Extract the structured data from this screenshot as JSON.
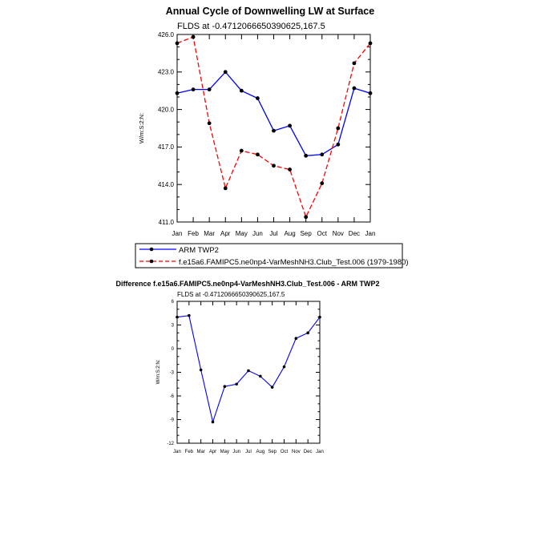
{
  "chart_data": [
    {
      "type": "line",
      "title": "Annual Cycle of Downwelling LW at Surface",
      "subtitle": "FLDS at -0.4712066650390625,167.5",
      "ylabel": "W/m:S:2:N:",
      "categories": [
        "Jan",
        "Feb",
        "Mar",
        "Apr",
        "May",
        "Jun",
        "Jul",
        "Aug",
        "Sep",
        "Oct",
        "Nov",
        "Dec",
        "Jan"
      ],
      "yticks": [
        "426.0",
        "423.0",
        "420.0",
        "417.0",
        "414.0",
        "411.0"
      ],
      "ylim": [
        411,
        426
      ],
      "grid": false,
      "legend_placement": "bottom",
      "series": [
        {
          "name": "ARM TWP2",
          "color": "#0000ff",
          "dash": "solid",
          "values": [
            421.3,
            421.6,
            421.6,
            423.0,
            421.5,
            420.9,
            418.3,
            418.7,
            416.3,
            416.4,
            417.2,
            421.7,
            421.3
          ]
        },
        {
          "name": "f.e15a6.FAMIPC5.ne0np4-VarMeshNH3.Club_Test.006 (1979-1980)",
          "color": "#ff0000",
          "dash": "dashed",
          "values": [
            425.3,
            425.8,
            418.9,
            413.7,
            416.7,
            416.4,
            415.5,
            415.2,
            411.4,
            414.1,
            418.5,
            423.7,
            425.3
          ]
        }
      ]
    },
    {
      "type": "line",
      "title": "Difference f.e15a6.FAMIPC5.ne0np4-VarMeshNH3.Club_Test.006 - ARM TWP2",
      "subtitle": "FLDS at -0.4712066650390625,167.5",
      "ylabel": "W/m:S:2:N:",
      "categories": [
        "Jan",
        "Feb",
        "Mar",
        "Apr",
        "May",
        "Jun",
        "Jul",
        "Aug",
        "Sep",
        "Oct",
        "Nov",
        "Dec",
        "Jan"
      ],
      "yticks": [
        "6",
        "3",
        "0",
        "-3",
        "-6",
        "-9",
        "-12"
      ],
      "ylim": [
        -12,
        6
      ],
      "grid": false,
      "series": [
        {
          "color": "#0000ff",
          "dash": "solid",
          "values": [
            4.0,
            4.2,
            -2.7,
            -9.3,
            -4.8,
            -4.5,
            -2.8,
            -3.5,
            -4.9,
            -2.3,
            1.3,
            2.0,
            4.0
          ]
        }
      ]
    }
  ]
}
